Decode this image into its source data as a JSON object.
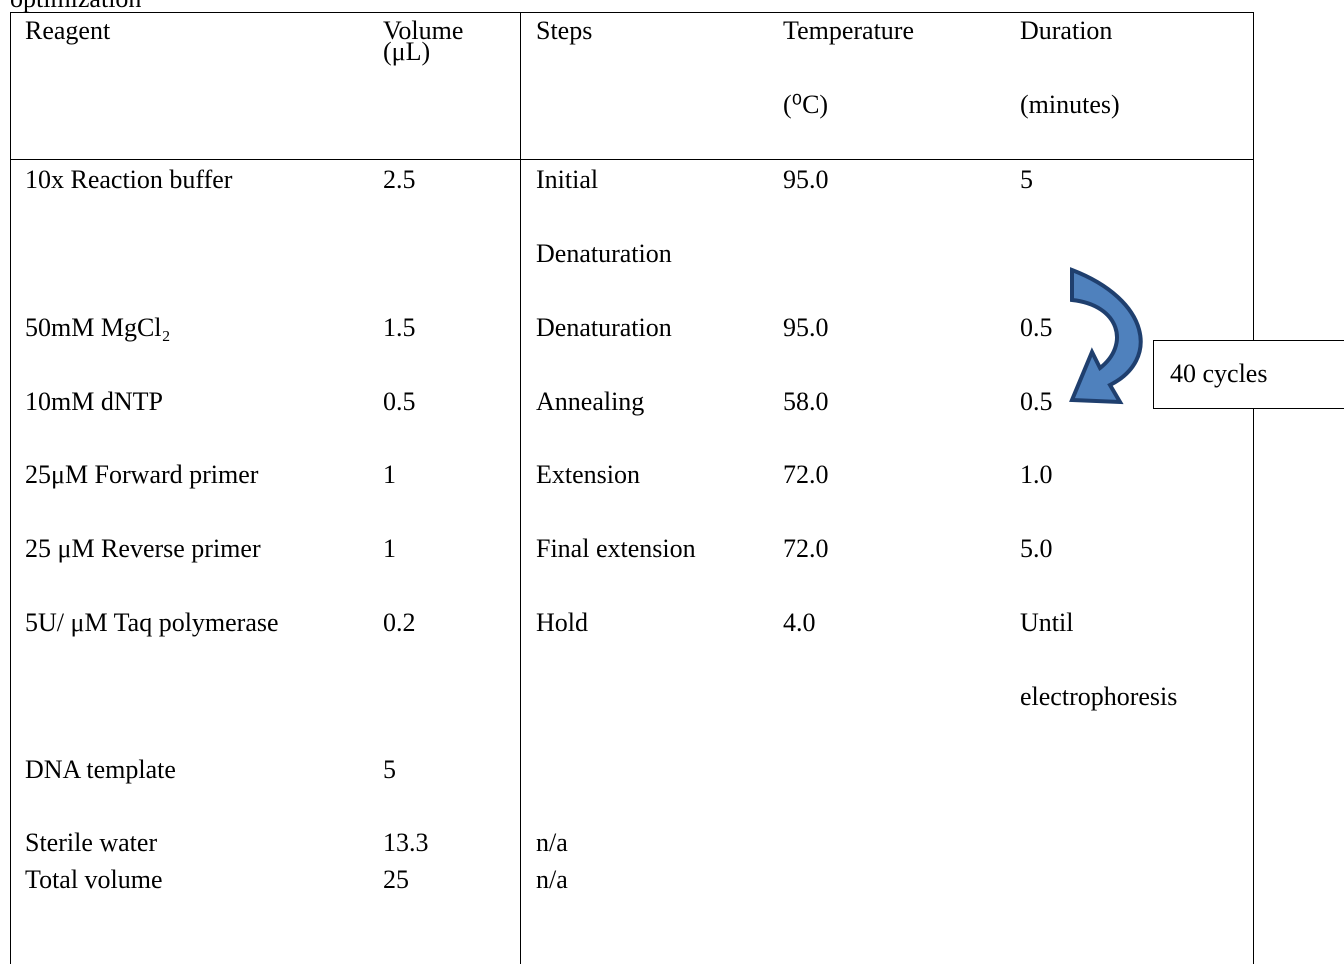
{
  "caption": "optimization",
  "annotation": "40 cycles",
  "table": {
    "header": [
      [
        "Reagent"
      ],
      [
        "Volume",
        "(μL)"
      ],
      [
        "Steps"
      ],
      [
        "Temperature",
        "(⁰C)"
      ],
      [
        "Duration",
        "(minutes)"
      ]
    ],
    "rows": [
      [
        "10x Reaction buffer",
        "2.5",
        "Initial",
        "95.0",
        "5"
      ],
      [
        null,
        null,
        "Denaturation",
        null,
        null
      ],
      [
        "50mM MgCl₂",
        "1.5",
        "Denaturation",
        "95.0",
        "0.5"
      ],
      [
        "10mM dNTP",
        "0.5",
        "Annealing",
        "58.0",
        "0.5"
      ],
      [
        "25μM Forward primer",
        "1",
        "Extension",
        "72.0",
        "1.0"
      ],
      [
        "25 μM Reverse primer",
        "1",
        "Final extension",
        "72.0",
        "5.0"
      ],
      [
        "5U/ μM Taq polymerase",
        "0.2",
        "Hold",
        "4.0",
        "Until"
      ],
      [
        null,
        null,
        null,
        null,
        "electrophoresis"
      ],
      [
        "DNA template",
        "5",
        null,
        null,
        null
      ],
      [
        "Sterile water",
        "13.3",
        "n/a",
        null,
        null
      ],
      [
        "Total volume",
        "25",
        "n/a",
        null,
        null
      ]
    ]
  }
}
